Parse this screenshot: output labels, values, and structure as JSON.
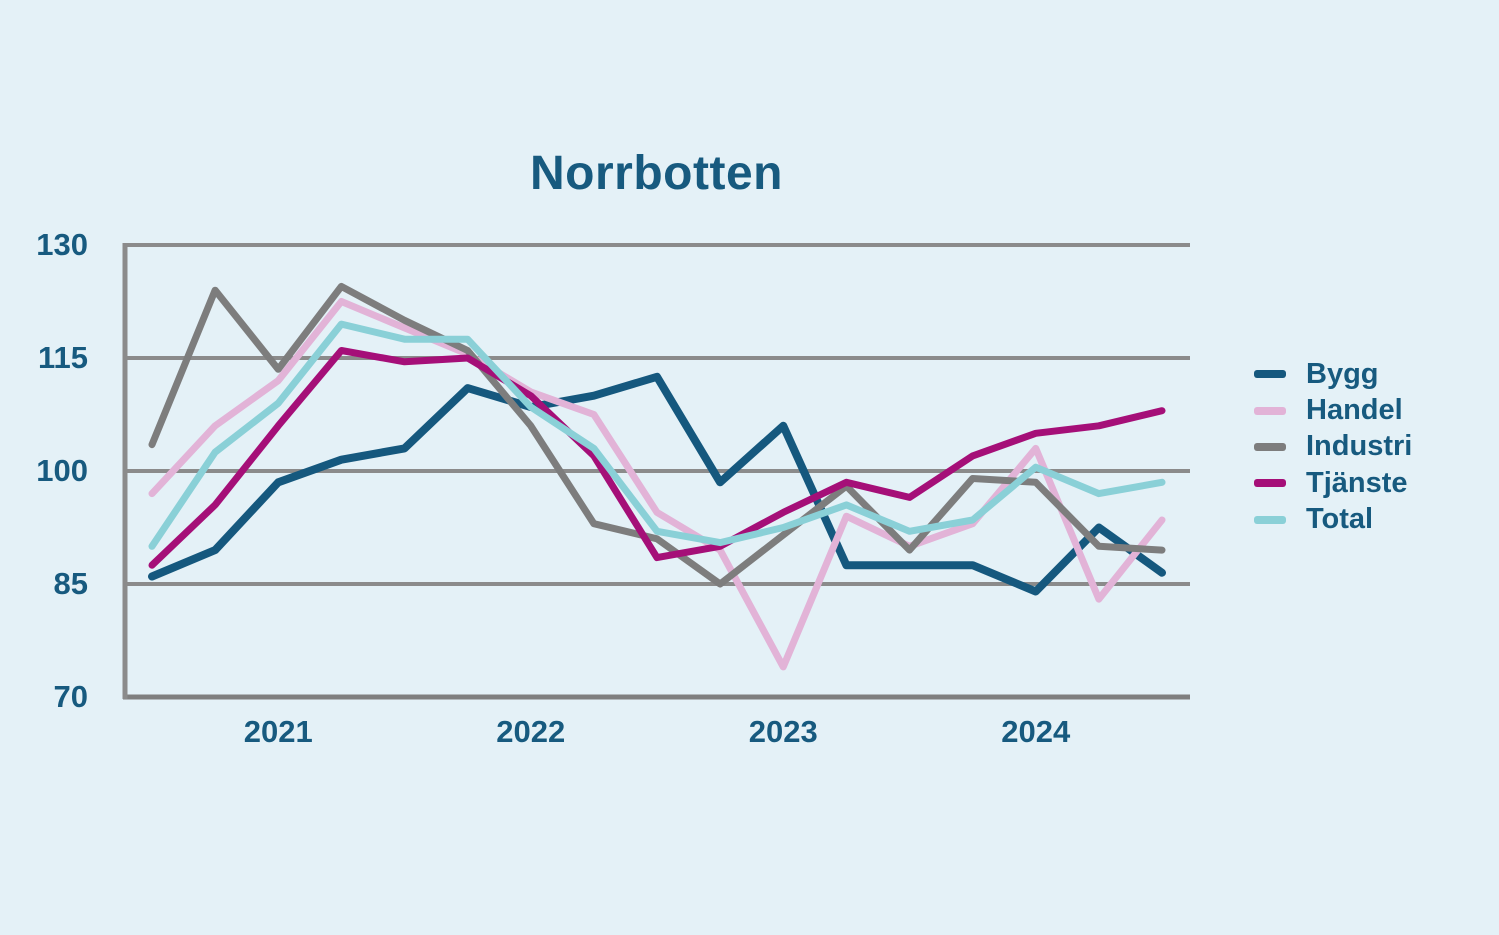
{
  "colors": {
    "background": "#e4f1f7",
    "text": "#175a7f",
    "grid": "#8b8b8b",
    "axis": "#7f7f7f"
  },
  "chart_data": {
    "type": "line",
    "title": "Norrbotten",
    "x_tick_labels": [
      "2021",
      "2022",
      "2023",
      "2024"
    ],
    "x_interval": "quarterly",
    "x_range": "2020-Q3 to 2024-Q3",
    "points_per_series": 17,
    "ylim": [
      70,
      130
    ],
    "yticks": [
      130,
      115,
      100,
      85,
      70
    ],
    "grid": "horizontal-only",
    "legend_position": "right",
    "series": [
      {
        "name": "Bygg",
        "color": "#15587e",
        "values": [
          86,
          89.5,
          98.5,
          101.5,
          103,
          111,
          108.5,
          110,
          112.5,
          98.5,
          106,
          87.5,
          87.5,
          87.5,
          84,
          92.5,
          86.5
        ]
      },
      {
        "name": "Handel",
        "color": "#e2b3d7",
        "values": [
          97,
          106,
          112,
          122.5,
          119,
          115.5,
          110.5,
          107.5,
          94.5,
          89.5,
          74,
          94,
          90,
          93,
          103,
          83,
          93.5
        ]
      },
      {
        "name": "Industri",
        "color": "#7d7d7d",
        "values": [
          103.5,
          124,
          113.5,
          124.5,
          120,
          116,
          106,
          93,
          91,
          85,
          91.5,
          98,
          89.5,
          99,
          98.5,
          90,
          89.5
        ]
      },
      {
        "name": "Tjänste",
        "color": "#a50f78",
        "values": [
          87.5,
          95.5,
          106,
          116,
          114.5,
          115,
          110,
          102,
          88.5,
          90,
          94.5,
          98.5,
          96.5,
          102,
          105,
          106,
          108
        ]
      },
      {
        "name": "Total",
        "color": "#8ad0d7",
        "values": [
          90,
          102.5,
          109,
          119.5,
          117.5,
          117.5,
          108.5,
          103,
          92,
          90.5,
          92.5,
          95.5,
          92,
          93.5,
          100.5,
          97,
          98.5
        ]
      }
    ]
  }
}
